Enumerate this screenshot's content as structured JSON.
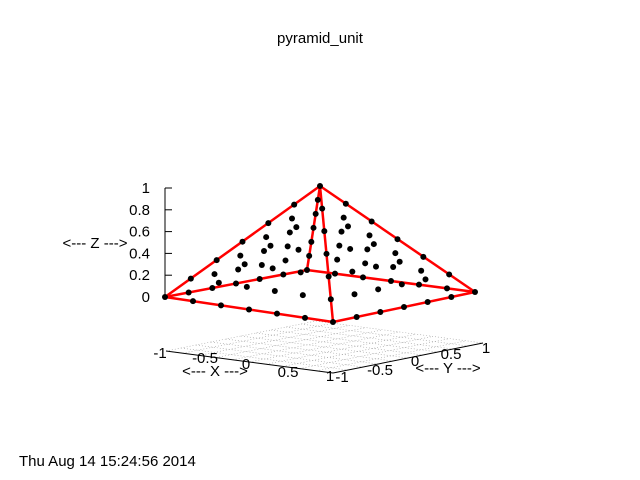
{
  "chart_data": {
    "type": "scatter",
    "title": "pyramid_unit",
    "xlabel": "<--- X --->",
    "ylabel": "<--- Y --->",
    "zlabel": "<--- Z --->",
    "timestamp": "Thu Aug 14 15:24:56 2014",
    "x_ticks": [
      "-1",
      "-0.5",
      "0",
      "0.5",
      "1"
    ],
    "y_ticks": [
      "-1",
      "-0.5",
      "0",
      "0.5",
      "1"
    ],
    "z_ticks": [
      "0",
      "0.2",
      "0.4",
      "0.6",
      "0.8",
      "1"
    ],
    "xlim": [
      -1,
      1
    ],
    "ylim": [
      -1,
      1
    ],
    "zlim": [
      0,
      1
    ],
    "grid": "xy-base",
    "colors": {
      "points": "#000000",
      "edges": "#ff0000",
      "grid": "#a0a0a0"
    },
    "pyramid": {
      "apex": [
        0,
        0,
        1
      ],
      "base": [
        [
          -1,
          -1,
          0
        ],
        [
          1,
          -1,
          0
        ],
        [
          1,
          1,
          0
        ],
        [
          -1,
          1,
          0
        ]
      ]
    },
    "points_per_edge": 6
  }
}
